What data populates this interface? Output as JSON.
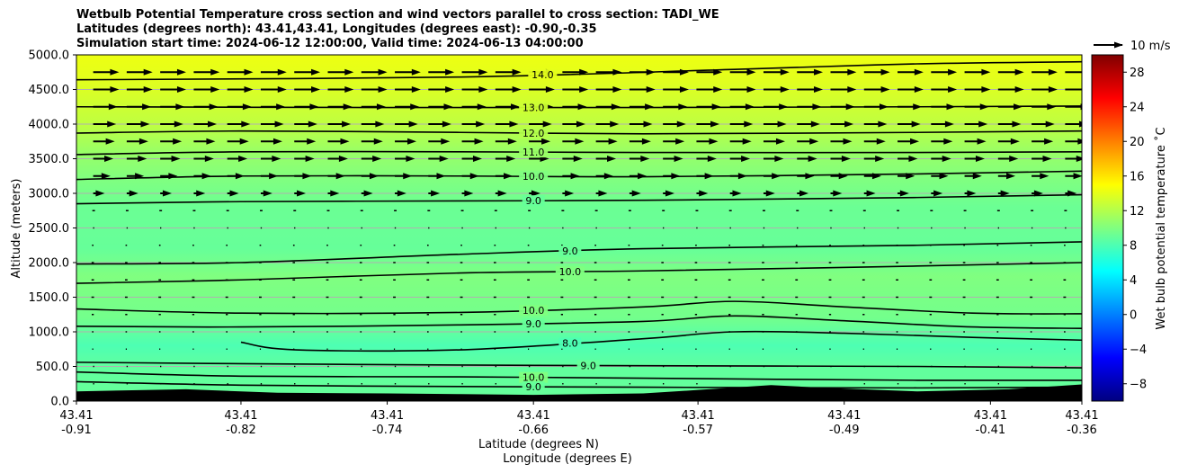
{
  "chart_data": {
    "type": "cross_section_contour",
    "title_lines": [
      "Wetbulb Potential Temperature cross section and wind vectors parallel to cross section: TADI_WE",
      "Latitudes (degrees north): 43.41,43.41, Longitudes (degrees east): -0.90,-0.35",
      "Simulation start time: 2024-06-12 12:00:00, Valid time: 2024-06-13 04:00:00"
    ],
    "ylabel": "Altitude (meters)",
    "xlabel_lat": "Latitude (degrees N)",
    "xlabel_lon": "Longitude (degrees E)",
    "ylim": [
      0,
      5000
    ],
    "xlim": [
      -0.91,
      -0.36
    ],
    "y_ticks": [
      "0.0",
      "500.0",
      "1000.0",
      "1500.0",
      "2000.0",
      "2500.0",
      "3000.0",
      "3500.0",
      "4000.0",
      "4500.0",
      "5000.0"
    ],
    "y_tick_values": [
      0,
      500,
      1000,
      1500,
      2000,
      2500,
      3000,
      3500,
      4000,
      4500,
      5000
    ],
    "x_ticks": [
      {
        "lat": "43.41",
        "lon": "-0.91",
        "value": -0.91
      },
      {
        "lat": "43.41",
        "lon": "-0.82",
        "value": -0.82
      },
      {
        "lat": "43.41",
        "lon": "-0.74",
        "value": -0.74
      },
      {
        "lat": "43.41",
        "lon": "-0.66",
        "value": -0.66
      },
      {
        "lat": "43.41",
        "lon": "-0.57",
        "value": -0.57
      },
      {
        "lat": "43.41",
        "lon": "-0.49",
        "value": -0.49
      },
      {
        "lat": "43.41",
        "lon": "-0.41",
        "value": -0.41
      },
      {
        "lat": "43.41",
        "lon": "-0.36",
        "value": -0.36
      }
    ],
    "colorbar": {
      "label": "Wet bulb potential temperature $^\\circ$C",
      "label_display": "Wet bulb potential temperature ˚C",
      "range": [
        -10,
        30
      ],
      "ticks": [
        "-8",
        "-4",
        "0",
        "4",
        "8",
        "12",
        "16",
        "20",
        "24",
        "28"
      ],
      "tick_values": [
        -8,
        -4,
        0,
        4,
        8,
        12,
        16,
        20,
        24,
        28
      ]
    },
    "wind_key": {
      "label": "10 m/s",
      "speed": 10
    },
    "temperature_profile": [
      {
        "alt": 0,
        "temp": 9.0
      },
      {
        "alt": 500,
        "temp": 8.8
      },
      {
        "alt": 800,
        "temp": 8.0
      },
      {
        "alt": 1200,
        "temp": 9.5
      },
      {
        "alt": 1800,
        "temp": 10.0
      },
      {
        "alt": 2200,
        "temp": 9.0
      },
      {
        "alt": 2800,
        "temp": 9.2
      },
      {
        "alt": 3200,
        "temp": 10.0
      },
      {
        "alt": 3600,
        "temp": 11.0
      },
      {
        "alt": 4000,
        "temp": 12.5
      },
      {
        "alt": 4700,
        "temp": 14.0
      },
      {
        "alt": 5000,
        "temp": 14.3
      }
    ],
    "contours": [
      {
        "label": "14.0",
        "label_x": -0.655,
        "points": [
          [
            -0.91,
            4640
          ],
          [
            -0.7,
            4680
          ],
          [
            -0.55,
            4790
          ],
          [
            -0.45,
            4870
          ],
          [
            -0.36,
            4900
          ]
        ]
      },
      {
        "label": "13.0",
        "label_x": -0.66,
        "points": [
          [
            -0.91,
            4250
          ],
          [
            -0.75,
            4240
          ],
          [
            -0.6,
            4240
          ],
          [
            -0.45,
            4250
          ],
          [
            -0.36,
            4260
          ]
        ]
      },
      {
        "label": "12.0",
        "label_x": -0.66,
        "points": [
          [
            -0.91,
            3870
          ],
          [
            -0.82,
            3900
          ],
          [
            -0.7,
            3880
          ],
          [
            -0.6,
            3860
          ],
          [
            -0.45,
            3880
          ],
          [
            -0.36,
            3900
          ]
        ]
      },
      {
        "label": "11.0",
        "label_x": -0.66,
        "points": [
          [
            -0.91,
            3560
          ],
          [
            -0.82,
            3600
          ],
          [
            -0.7,
            3600
          ],
          [
            -0.6,
            3590
          ],
          [
            -0.45,
            3590
          ],
          [
            -0.36,
            3600
          ]
        ]
      },
      {
        "label": "10.0",
        "label_x": -0.66,
        "points": [
          [
            -0.91,
            3200
          ],
          [
            -0.82,
            3250
          ],
          [
            -0.7,
            3250
          ],
          [
            -0.6,
            3240
          ],
          [
            -0.45,
            3280
          ],
          [
            -0.36,
            3320
          ]
        ]
      },
      {
        "label": "9.0",
        "label_x": -0.66,
        "points": [
          [
            -0.91,
            2850
          ],
          [
            -0.82,
            2880
          ],
          [
            -0.7,
            2890
          ],
          [
            -0.6,
            2900
          ],
          [
            -0.45,
            2940
          ],
          [
            -0.36,
            2980
          ]
        ]
      },
      {
        "label": "9.0",
        "label_x": -0.64,
        "points": [
          [
            -0.91,
            1980
          ],
          [
            -0.82,
            2000
          ],
          [
            -0.7,
            2120
          ],
          [
            -0.6,
            2200
          ],
          [
            -0.45,
            2250
          ],
          [
            -0.36,
            2300
          ]
        ]
      },
      {
        "label": "10.0",
        "label_x": -0.64,
        "points": [
          [
            -0.91,
            1700
          ],
          [
            -0.82,
            1750
          ],
          [
            -0.7,
            1850
          ],
          [
            -0.6,
            1880
          ],
          [
            -0.45,
            1950
          ],
          [
            -0.36,
            2000
          ]
        ]
      },
      {
        "label": "10.0",
        "label_x": -0.66,
        "points": [
          [
            -0.91,
            1330
          ],
          [
            -0.82,
            1270
          ],
          [
            -0.7,
            1280
          ],
          [
            -0.6,
            1360
          ],
          [
            -0.55,
            1440
          ],
          [
            -0.49,
            1360
          ],
          [
            -0.42,
            1270
          ],
          [
            -0.36,
            1260
          ]
        ]
      },
      {
        "label": "9.0",
        "label_x": -0.66,
        "points": [
          [
            -0.91,
            1080
          ],
          [
            -0.82,
            1070
          ],
          [
            -0.7,
            1100
          ],
          [
            -0.6,
            1150
          ],
          [
            -0.55,
            1230
          ],
          [
            -0.49,
            1160
          ],
          [
            -0.42,
            1070
          ],
          [
            -0.36,
            1050
          ]
        ]
      },
      {
        "label": "8.0",
        "label_x": -0.64,
        "points": [
          [
            -0.82,
            850
          ],
          [
            -0.79,
            740
          ],
          [
            -0.7,
            740
          ],
          [
            -0.6,
            900
          ],
          [
            -0.55,
            1000
          ],
          [
            -0.49,
            980
          ],
          [
            -0.42,
            920
          ],
          [
            -0.36,
            880
          ]
        ]
      },
      {
        "label": "9.0",
        "label_x": -0.63,
        "points": [
          [
            -0.91,
            560
          ],
          [
            -0.82,
            540
          ],
          [
            -0.7,
            520
          ],
          [
            -0.6,
            510
          ],
          [
            -0.45,
            500
          ],
          [
            -0.36,
            480
          ]
        ]
      },
      {
        "label": "10.0",
        "label_x": -0.66,
        "points": [
          [
            -0.91,
            420
          ],
          [
            -0.82,
            360
          ],
          [
            -0.7,
            350
          ],
          [
            -0.6,
            330
          ],
          [
            -0.45,
            300
          ],
          [
            -0.36,
            300
          ]
        ]
      },
      {
        "label": "9.0",
        "label_x": -0.66,
        "points": [
          [
            -0.91,
            280
          ],
          [
            -0.82,
            230
          ],
          [
            -0.7,
            210
          ],
          [
            -0.6,
            200
          ],
          [
            -0.45,
            190
          ],
          [
            -0.36,
            200
          ]
        ]
      }
    ],
    "terrain": [
      [
        -0.91,
        140
      ],
      [
        -0.85,
        170
      ],
      [
        -0.8,
        120
      ],
      [
        -0.74,
        110
      ],
      [
        -0.7,
        100
      ],
      [
        -0.66,
        90
      ],
      [
        -0.6,
        110
      ],
      [
        -0.57,
        160
      ],
      [
        -0.53,
        230
      ],
      [
        -0.5,
        190
      ],
      [
        -0.45,
        140
      ],
      [
        -0.4,
        170
      ],
      [
        -0.36,
        240
      ]
    ],
    "wind_profile": [
      {
        "alt": 250,
        "u": 0.1
      },
      {
        "alt": 500,
        "u": 0.1
      },
      {
        "alt": 1000,
        "u": -0.2
      },
      {
        "alt": 1500,
        "u": -0.6
      },
      {
        "alt": 2000,
        "u": -0.5
      },
      {
        "alt": 2500,
        "u": 0.1
      },
      {
        "alt": 2750,
        "u": 0.6
      },
      {
        "alt": 3000,
        "u": 4
      },
      {
        "alt": 3250,
        "u": 6
      },
      {
        "alt": 3500,
        "u": 7
      },
      {
        "alt": 4000,
        "u": 8
      },
      {
        "alt": 4500,
        "u": 9
      },
      {
        "alt": 5000,
        "u": 9
      }
    ]
  }
}
